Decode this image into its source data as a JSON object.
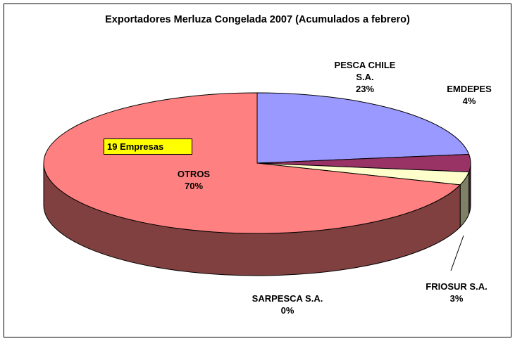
{
  "chart_data": {
    "type": "pie",
    "title": "Exportadores Merluza Congelada 2007 (Acumulados a febrero)",
    "categories": [
      "PESCA CHILE S.A.",
      "EMDEPES",
      "FRIOSUR S.A.",
      "SARPESCA S.A.",
      "OTROS"
    ],
    "values": [
      23,
      4,
      3,
      0,
      70
    ],
    "value_labels": [
      "23%",
      "4%",
      "3%",
      "0%",
      "70%"
    ],
    "colors": [
      "#9999ff",
      "#993366",
      "#ffffcc",
      "#808000",
      "#ff8080"
    ],
    "annotation": "19 Empresas"
  }
}
